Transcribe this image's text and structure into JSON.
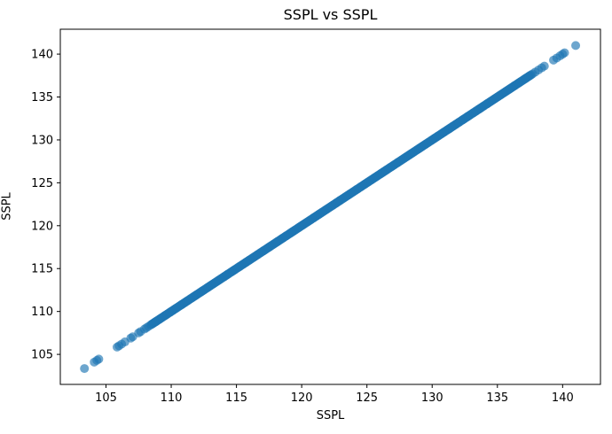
{
  "figure": {
    "background_color": "#ffffff",
    "text_color": "#000000",
    "spine_color": "#000000"
  },
  "chart_data": {
    "type": "scatter",
    "title": "SSPL vs SSPL",
    "xlabel": "SSPL",
    "ylabel": "SSPL",
    "xlim": [
      101.5,
      142.9
    ],
    "ylim": [
      101.5,
      142.9
    ],
    "xticks": [
      105,
      110,
      115,
      120,
      125,
      130,
      135,
      140
    ],
    "yticks": [
      105,
      110,
      115,
      120,
      125,
      130,
      135,
      140
    ],
    "grid": false,
    "legend_position": "none",
    "marker": {
      "color": "#1f77b4",
      "opacity": 0.65,
      "radius_px": 5
    },
    "relationship": "identity (y = x), same variable on both axes",
    "points_low": [
      103.35,
      104.1,
      104.3,
      104.45,
      105.85,
      106.0,
      106.2,
      106.45,
      106.9,
      107.05,
      107.5,
      107.65,
      107.95,
      108.1,
      108.25
    ],
    "points_high": [
      137.7,
      137.9,
      138.15,
      138.4,
      138.6,
      139.3,
      139.55,
      139.8,
      140.0,
      140.15,
      141.0
    ],
    "dense_band": {
      "min": 108.4,
      "max": 137.6,
      "count": 520,
      "distribution": "uniform-stratified"
    }
  }
}
